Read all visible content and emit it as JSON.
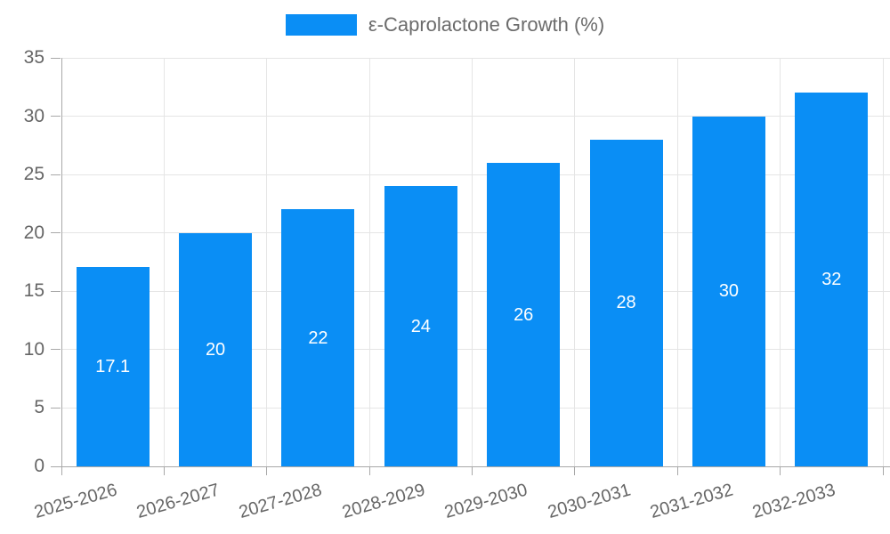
{
  "chart_data": {
    "type": "bar",
    "title": "ε-Caprolactone Growth (%)",
    "categories": [
      "2025-2026",
      "2026-2027",
      "2027-2028",
      "2028-2029",
      "2029-2030",
      "2030-2031",
      "2031-2032",
      "2032-2033"
    ],
    "series": [
      {
        "name": "ε-Caprolactone Growth (%)",
        "values": [
          17.1,
          20,
          22,
          24,
          26,
          28,
          30,
          32
        ],
        "color": "#0a8ef5"
      }
    ],
    "value_labels": [
      "17.1",
      "20",
      "22",
      "24",
      "26",
      "28",
      "30",
      "32"
    ],
    "xlabel": "",
    "ylabel": "",
    "ylim": [
      0,
      35
    ],
    "yticks": [
      0,
      5,
      10,
      15,
      20,
      25,
      30,
      35
    ],
    "grid": true,
    "legend_position": "top",
    "bar_label_position": "inside-middle",
    "x_tick_label_rotation_deg": -16
  },
  "colors": {
    "bar": "#0a8ef5",
    "grid": "#e5e5e5",
    "axis": "#a8a8a8",
    "tick_text": "#666666",
    "legend_text": "#6b6b6b",
    "bar_label_text": "#ffffff",
    "background": "#ffffff"
  }
}
